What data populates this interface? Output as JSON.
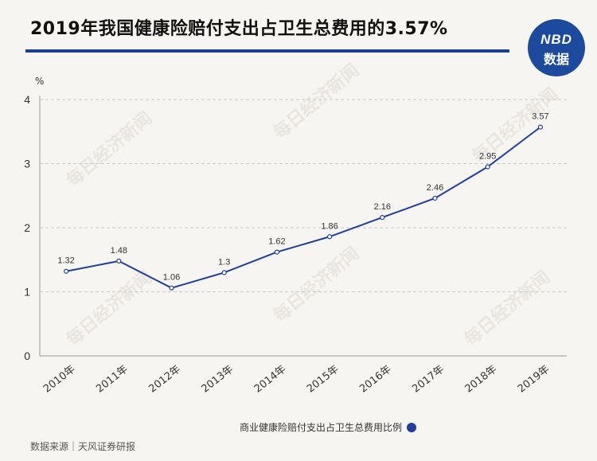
{
  "title": "2019年我国健康险赔付支出占卫生总费用的3.57%",
  "logo": {
    "line1": "NBD",
    "line2": "数据"
  },
  "watermark_text": "每日经济新闻",
  "source": "数据来源｜天风证券研报",
  "colors": {
    "line": "#1f3f99",
    "accent": "#1b3f8f",
    "grid": "#c9c9c9"
  },
  "chart_data": {
    "type": "line",
    "title": "2019年我国健康险赔付支出占卫生总费用的3.57%",
    "ylabel": "%",
    "xlabel": "",
    "categories": [
      "2010年",
      "2011年",
      "2012年",
      "2013年",
      "2014年",
      "2015年",
      "2016年",
      "2017年",
      "2018年",
      "2019年"
    ],
    "series": [
      {
        "name": "商业健康险赔付支出占卫生总费用比例",
        "values": [
          1.32,
          1.48,
          1.06,
          1.3,
          1.62,
          1.86,
          2.16,
          2.46,
          2.95,
          3.57
        ],
        "labels": [
          "1.32",
          "1.48",
          "1.06",
          "1.3",
          "1.62",
          "1.86",
          "2.16",
          "2.46",
          "2.95",
          "3.57"
        ]
      }
    ],
    "ylim": [
      0,
      4
    ],
    "yticks": [
      "0",
      "1",
      "2",
      "3",
      "4"
    ],
    "grid": true,
    "legend": "bottom-center"
  }
}
